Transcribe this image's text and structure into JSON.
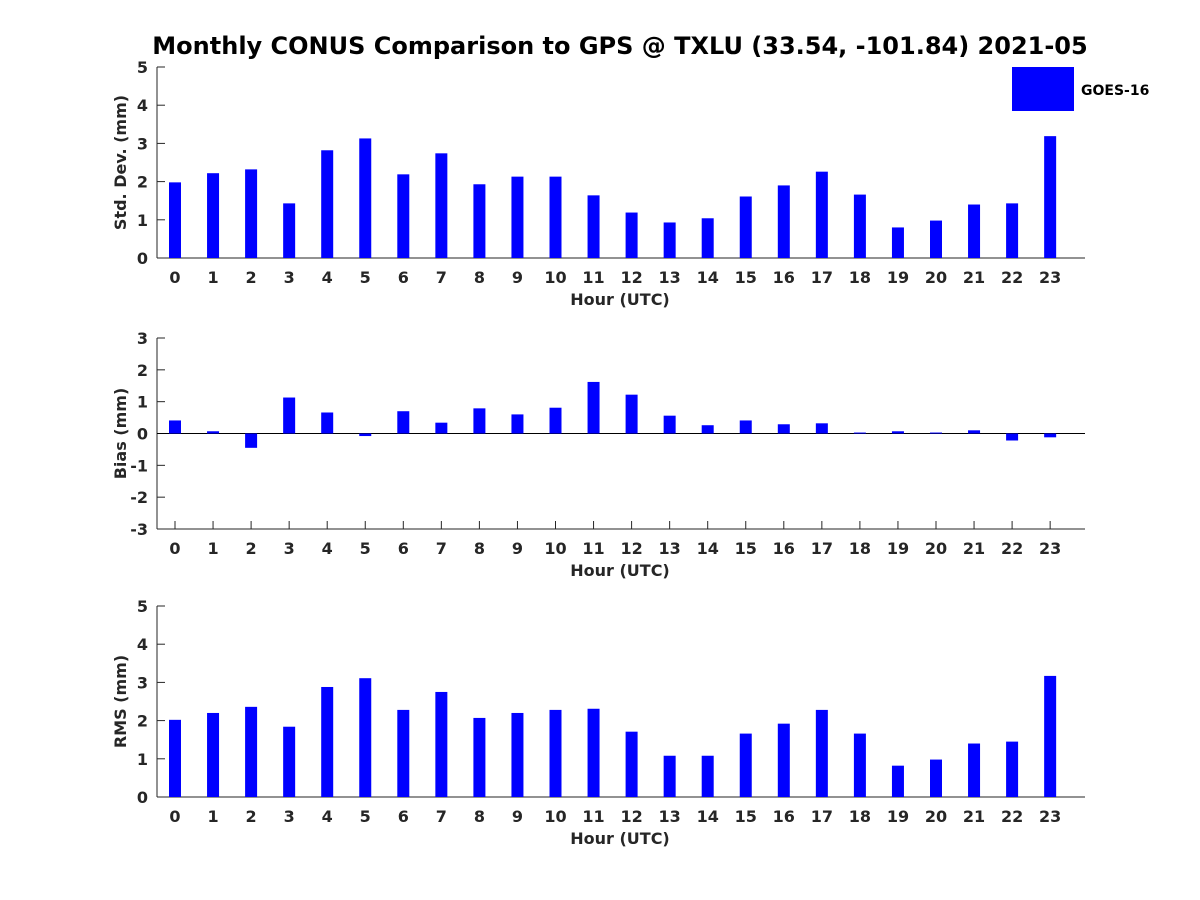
{
  "title": "Monthly CONUS Comparison to GPS @ TXLU (33.54, -101.84) 2021-05",
  "legend": {
    "label": "GOES-16",
    "color": "#0000ff",
    "location": "top-right"
  },
  "chart_data": [
    {
      "type": "bar",
      "name": "std-dev",
      "xlabel": "Hour (UTC)",
      "ylabel": "Std. Dev. (mm)",
      "ylim": [
        0,
        5
      ],
      "yticks": [
        "0",
        "1",
        "2",
        "3",
        "4",
        "5"
      ],
      "categories": [
        "0",
        "1",
        "2",
        "3",
        "4",
        "5",
        "6",
        "7",
        "8",
        "9",
        "10",
        "11",
        "12",
        "13",
        "14",
        "15",
        "16",
        "17",
        "18",
        "19",
        "20",
        "21",
        "22",
        "23"
      ],
      "series": [
        {
          "name": "GOES-16",
          "color": "#0000ff",
          "values": [
            1.98,
            2.22,
            2.32,
            1.43,
            2.82,
            3.13,
            2.19,
            2.74,
            1.93,
            2.13,
            2.13,
            1.64,
            1.19,
            0.93,
            1.04,
            1.61,
            1.9,
            2.26,
            1.66,
            0.8,
            0.98,
            1.4,
            1.43,
            3.19
          ]
        }
      ]
    },
    {
      "type": "bar",
      "name": "bias",
      "xlabel": "Hour (UTC)",
      "ylabel": "Bias (mm)",
      "ylim": [
        -3,
        3
      ],
      "yticks": [
        "-3",
        "-2",
        "-1",
        "0",
        "1",
        "2",
        "3"
      ],
      "zero_line": true,
      "categories": [
        "0",
        "1",
        "2",
        "3",
        "4",
        "5",
        "6",
        "7",
        "8",
        "9",
        "10",
        "11",
        "12",
        "13",
        "14",
        "15",
        "16",
        "17",
        "18",
        "19",
        "20",
        "21",
        "22",
        "23"
      ],
      "series": [
        {
          "name": "GOES-16",
          "color": "#0000ff",
          "values": [
            0.41,
            0.07,
            -0.45,
            1.13,
            0.66,
            -0.08,
            0.7,
            0.34,
            0.79,
            0.6,
            0.81,
            1.62,
            1.22,
            0.56,
            0.26,
            0.41,
            0.29,
            0.32,
            0.03,
            0.07,
            0.03,
            0.1,
            -0.22,
            -0.12
          ]
        }
      ]
    },
    {
      "type": "bar",
      "name": "rms",
      "xlabel": "Hour (UTC)",
      "ylabel": "RMS (mm)",
      "ylim": [
        0,
        5
      ],
      "yticks": [
        "0",
        "1",
        "2",
        "3",
        "4",
        "5"
      ],
      "categories": [
        "0",
        "1",
        "2",
        "3",
        "4",
        "5",
        "6",
        "7",
        "8",
        "9",
        "10",
        "11",
        "12",
        "13",
        "14",
        "15",
        "16",
        "17",
        "18",
        "19",
        "20",
        "21",
        "22",
        "23"
      ],
      "series": [
        {
          "name": "GOES-16",
          "color": "#0000ff",
          "values": [
            2.02,
            2.2,
            2.36,
            1.84,
            2.88,
            3.11,
            2.28,
            2.75,
            2.07,
            2.2,
            2.28,
            2.31,
            1.71,
            1.08,
            1.08,
            1.66,
            1.92,
            2.28,
            1.66,
            0.82,
            0.98,
            1.4,
            1.45,
            3.17
          ]
        }
      ]
    }
  ]
}
